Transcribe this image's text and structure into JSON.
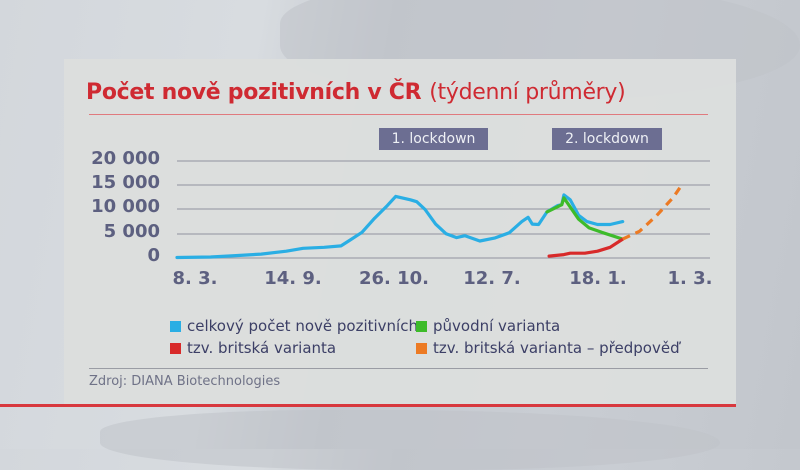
{
  "title": {
    "main": "Počet nově pozitivních v ČR",
    "sub": "(týdenní průměry)"
  },
  "annotations": {
    "lockdown1": "1. lockdown",
    "lockdown2": "2. lockdown"
  },
  "colors": {
    "title": "#cf2a32",
    "total": "#2aaee4",
    "original": "#3dbb2a",
    "british": "#d82a2a",
    "forecast": "#ec7a23",
    "grid": "#9fa1ad",
    "axis_text": "#5d6080"
  },
  "legend": [
    {
      "label": "celkový počet nově pozitivních",
      "color": "#2aaee4"
    },
    {
      "label": "původní varianta",
      "color": "#3dbb2a"
    },
    {
      "label": "tzv. britská varianta",
      "color": "#d82a2a"
    },
    {
      "label": "tzv. britská varianta – předpověď",
      "color": "#ec7a23"
    }
  ],
  "source": "Zdroj: DIANA Biotechnologies",
  "chart_data": {
    "type": "line",
    "title": "Počet nově pozitivních v ČR (týdenní průměry)",
    "xlabel": "",
    "ylabel": "",
    "ylim": [
      0,
      20000
    ],
    "yticks": [
      "0",
      "5 000",
      "10 000",
      "15 000",
      "20 000"
    ],
    "xticks": [
      "8. 3.",
      "14. 9.",
      "26. 10.",
      "12. 7.",
      "18. 1.",
      "1. 3."
    ],
    "grid": true,
    "legend_position": "bottom",
    "annotations": [
      "1. lockdown",
      "2. lockdown"
    ],
    "series": [
      {
        "name": "celkový počet nově pozitivních",
        "color": "#2aaee4",
        "style": "solid",
        "points": [
          [
            0,
            100
          ],
          [
            0.08,
            200
          ],
          [
            0.14,
            500
          ],
          [
            0.2,
            800
          ],
          [
            0.26,
            1400
          ],
          [
            0.3,
            2000
          ],
          [
            0.35,
            2200
          ],
          [
            0.39,
            2500
          ],
          [
            0.41,
            3600
          ],
          [
            0.44,
            5300
          ],
          [
            0.47,
            8200
          ],
          [
            0.5,
            10800
          ],
          [
            0.52,
            12700
          ],
          [
            0.555,
            12000
          ],
          [
            0.57,
            11600
          ],
          [
            0.59,
            10000
          ],
          [
            0.615,
            7000
          ],
          [
            0.64,
            5000
          ],
          [
            0.665,
            4200
          ],
          [
            0.685,
            4600
          ],
          [
            0.72,
            3500
          ],
          [
            0.755,
            4100
          ],
          [
            0.79,
            5200
          ],
          [
            0.82,
            7500
          ],
          [
            0.835,
            8400
          ],
          [
            0.845,
            7000
          ],
          [
            0.86,
            6900
          ],
          [
            0.88,
            9500
          ],
          [
            0.905,
            10800
          ],
          [
            0.915,
            11000
          ],
          [
            0.92,
            13000
          ],
          [
            0.935,
            12000
          ],
          [
            0.955,
            8800
          ],
          [
            0.975,
            7500
          ],
          [
            1.0,
            6900
          ],
          [
            1.03,
            6900
          ],
          [
            1.06,
            7500
          ]
        ]
      },
      {
        "name": "původní varianta",
        "color": "#3dbb2a",
        "style": "solid",
        "points": [
          [
            0.88,
            9500
          ],
          [
            0.915,
            11000
          ],
          [
            0.92,
            12400
          ],
          [
            0.955,
            8000
          ],
          [
            0.98,
            6200
          ],
          [
            1.01,
            5300
          ],
          [
            1.06,
            3900
          ]
        ]
      },
      {
        "name": "tzv. britská varianta",
        "color": "#d82a2a",
        "style": "solid",
        "points": [
          [
            0.885,
            400
          ],
          [
            0.92,
            700
          ],
          [
            0.935,
            1000
          ],
          [
            0.97,
            1000
          ],
          [
            1.0,
            1400
          ],
          [
            1.03,
            2200
          ],
          [
            1.06,
            3900
          ]
        ]
      },
      {
        "name": "tzv. britská varianta – předpověď",
        "color": "#ec7a23",
        "style": "dashed",
        "points": [
          [
            1.06,
            3900
          ],
          [
            1.1,
            5500
          ],
          [
            1.14,
            8700
          ],
          [
            1.18,
            12500
          ],
          [
            1.2,
            15000
          ]
        ]
      }
    ]
  }
}
